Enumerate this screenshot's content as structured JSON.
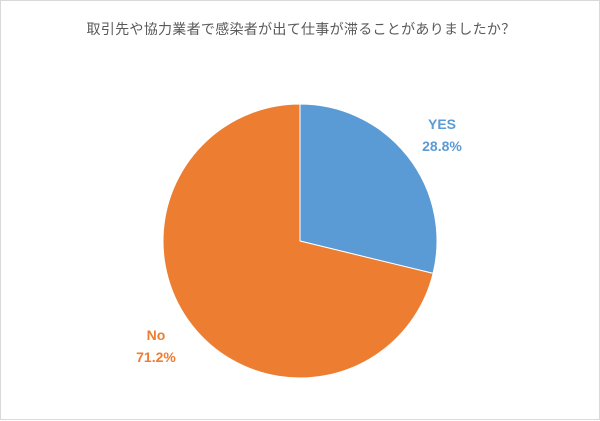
{
  "chart_data": {
    "type": "pie",
    "title": "取引先や協力業者で感染者が出て仕事が滞ることがありましたか？",
    "slices": [
      {
        "label": "YES",
        "value": 28.8,
        "value_label": "28.8%",
        "color": "#5b9bd5"
      },
      {
        "label": "No",
        "value": 71.2,
        "value_label": "71.2%",
        "color": "#ed7d31"
      }
    ],
    "start_angle_deg": 0,
    "direction": "clockwise",
    "legend": "none",
    "data_labels": "outside"
  }
}
